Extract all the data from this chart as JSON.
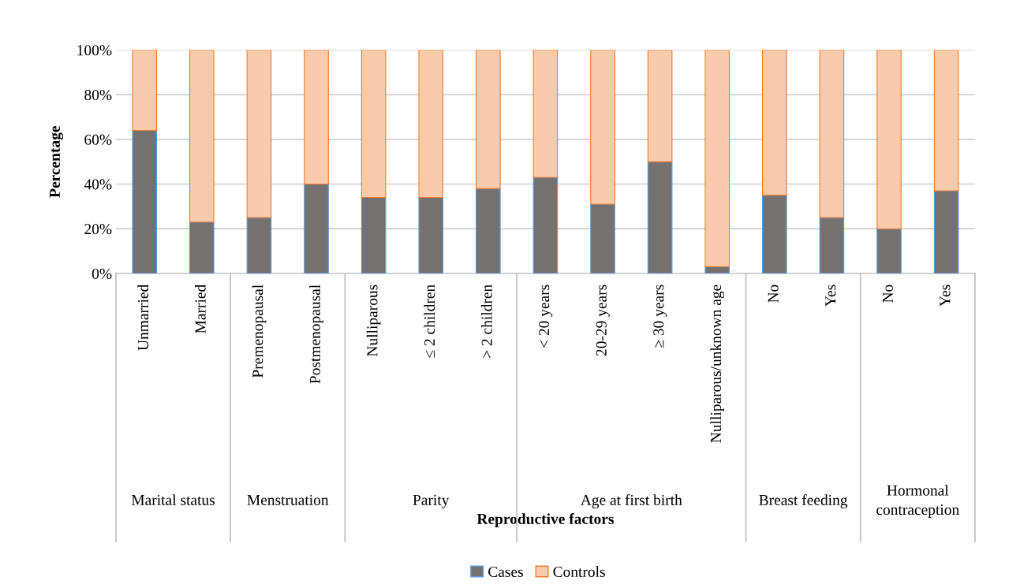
{
  "chart_data": {
    "type": "bar",
    "stacked": true,
    "xlabel": "Reproductive factors",
    "ylabel": "Percentage",
    "categories": [
      "Unmarried",
      "Married",
      "Premenopausal",
      "Postmenopausal",
      "Nulliparous",
      "≤ 2 children",
      "> 2 children",
      "< 20 years",
      "20-29 years",
      "≥ 30 years",
      "Nulliparous/unknown age",
      "No",
      "Yes",
      "No",
      "Yes"
    ],
    "series": [
      {
        "name": "Cases",
        "color": "#767171",
        "values": [
          64,
          23,
          25,
          40,
          34,
          34,
          38,
          43,
          31,
          50,
          3,
          35,
          25,
          20,
          37
        ]
      },
      {
        "name": "Controls",
        "color": "#f8cbad",
        "values": [
          36,
          77,
          75,
          60,
          66,
          66,
          62,
          57,
          69,
          50,
          97,
          65,
          75,
          80,
          63
        ]
      }
    ],
    "annotations": [
      "Marital status",
      "Menstruation",
      "Parity",
      "Age at first birth",
      "Breast feeding",
      "Hormonal contraception"
    ],
    "ylim": [
      0,
      100
    ],
    "yticks": [
      {
        "value": 0,
        "label": "0%"
      },
      {
        "value": 20,
        "label": "20%"
      },
      {
        "value": 40,
        "label": "40%"
      },
      {
        "value": 60,
        "label": "60%"
      },
      {
        "value": 80,
        "label": "80%"
      },
      {
        "value": 100,
        "label": "100%"
      }
    ],
    "grid": "y",
    "legend": "bottom"
  }
}
